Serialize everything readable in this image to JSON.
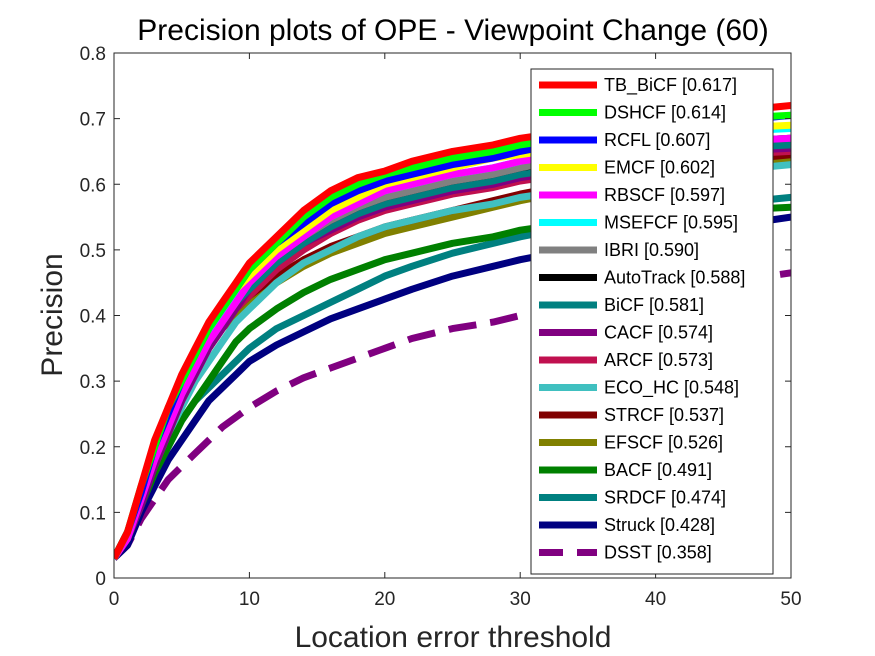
{
  "chart_data": {
    "type": "line",
    "title": "Precision plots of OPE - Viewpoint Change (60)",
    "xlabel": "Location error threshold",
    "ylabel": "Precision",
    "xlim": [
      0,
      50
    ],
    "ylim": [
      0,
      0.8
    ],
    "xticks": [
      "0",
      "10",
      "20",
      "30",
      "40",
      "50"
    ],
    "yticks": [
      "0",
      "0.1",
      "0.2",
      "0.3",
      "0.4",
      "0.5",
      "0.6",
      "0.7",
      "0.8"
    ],
    "grid": false,
    "legend_position": "top-right",
    "x": [
      0,
      1,
      2,
      3,
      4,
      5,
      6,
      7,
      8,
      9,
      10,
      12,
      14,
      16,
      18,
      20,
      22,
      25,
      28,
      30,
      35,
      40,
      45,
      50
    ],
    "series": [
      {
        "name": "TB_BiCF [0.617]",
        "color": "#ff0000",
        "dash": false,
        "values": [
          0.03,
          0.07,
          0.14,
          0.21,
          0.26,
          0.31,
          0.35,
          0.39,
          0.42,
          0.45,
          0.48,
          0.52,
          0.56,
          0.59,
          0.61,
          0.62,
          0.635,
          0.65,
          0.66,
          0.67,
          0.685,
          0.7,
          0.71,
          0.72
        ]
      },
      {
        "name": "DSHCF [0.614]",
        "color": "#00ff00",
        "dash": false,
        "values": [
          0.03,
          0.07,
          0.14,
          0.2,
          0.26,
          0.3,
          0.34,
          0.38,
          0.41,
          0.44,
          0.47,
          0.51,
          0.55,
          0.58,
          0.6,
          0.615,
          0.625,
          0.64,
          0.65,
          0.66,
          0.675,
          0.69,
          0.7,
          0.705
        ]
      },
      {
        "name": "RCFL [0.607]",
        "color": "#0000ff",
        "dash": false,
        "values": [
          0.03,
          0.07,
          0.13,
          0.2,
          0.25,
          0.3,
          0.34,
          0.38,
          0.41,
          0.44,
          0.47,
          0.51,
          0.54,
          0.57,
          0.59,
          0.605,
          0.615,
          0.63,
          0.64,
          0.65,
          0.67,
          0.68,
          0.695,
          0.705
        ]
      },
      {
        "name": "EMCF [0.602]",
        "color": "#ffff00",
        "dash": false,
        "values": [
          0.03,
          0.07,
          0.13,
          0.2,
          0.25,
          0.3,
          0.34,
          0.38,
          0.41,
          0.44,
          0.46,
          0.5,
          0.53,
          0.56,
          0.58,
          0.6,
          0.61,
          0.625,
          0.64,
          0.645,
          0.66,
          0.675,
          0.685,
          0.69
        ]
      },
      {
        "name": "RBSCF [0.597]",
        "color": "#ff00ff",
        "dash": false,
        "values": [
          0.03,
          0.06,
          0.12,
          0.18,
          0.23,
          0.28,
          0.32,
          0.36,
          0.39,
          0.42,
          0.45,
          0.49,
          0.52,
          0.55,
          0.57,
          0.59,
          0.6,
          0.615,
          0.625,
          0.635,
          0.65,
          0.66,
          0.665,
          0.67
        ]
      },
      {
        "name": "MSEFCF [0.595]",
        "color": "#00ffff",
        "dash": false,
        "values": [
          0.03,
          0.07,
          0.13,
          0.19,
          0.24,
          0.29,
          0.33,
          0.37,
          0.4,
          0.43,
          0.46,
          0.5,
          0.53,
          0.555,
          0.575,
          0.59,
          0.6,
          0.615,
          0.625,
          0.635,
          0.655,
          0.67,
          0.68,
          0.685
        ]
      },
      {
        "name": "IBRI [0.590]",
        "color": "#808080",
        "dash": false,
        "values": [
          0.03,
          0.07,
          0.13,
          0.19,
          0.24,
          0.29,
          0.33,
          0.37,
          0.4,
          0.43,
          0.46,
          0.49,
          0.52,
          0.545,
          0.565,
          0.58,
          0.59,
          0.605,
          0.615,
          0.625,
          0.645,
          0.66,
          0.665,
          0.67
        ]
      },
      {
        "name": "AutoTrack [0.588]",
        "color": "#000000",
        "dash": false,
        "values": [
          0.03,
          0.07,
          0.13,
          0.19,
          0.24,
          0.29,
          0.33,
          0.37,
          0.4,
          0.43,
          0.455,
          0.49,
          0.52,
          0.545,
          0.565,
          0.58,
          0.59,
          0.605,
          0.615,
          0.625,
          0.64,
          0.655,
          0.665,
          0.67
        ]
      },
      {
        "name": "BiCF [0.581]",
        "color": "#008080",
        "dash": false,
        "values": [
          0.03,
          0.06,
          0.12,
          0.18,
          0.23,
          0.28,
          0.32,
          0.36,
          0.39,
          0.42,
          0.44,
          0.48,
          0.51,
          0.535,
          0.555,
          0.57,
          0.58,
          0.595,
          0.605,
          0.615,
          0.63,
          0.645,
          0.655,
          0.66
        ]
      },
      {
        "name": "CACF [0.574]",
        "color": "#800080",
        "dash": false,
        "values": [
          0.03,
          0.06,
          0.11,
          0.17,
          0.22,
          0.27,
          0.31,
          0.35,
          0.38,
          0.41,
          0.44,
          0.48,
          0.51,
          0.53,
          0.55,
          0.565,
          0.575,
          0.59,
          0.6,
          0.61,
          0.625,
          0.64,
          0.65,
          0.655
        ]
      },
      {
        "name": "ARCF [0.573]",
        "color": "#c0104f",
        "dash": false,
        "values": [
          0.03,
          0.06,
          0.12,
          0.17,
          0.22,
          0.27,
          0.31,
          0.35,
          0.38,
          0.41,
          0.43,
          0.47,
          0.5,
          0.525,
          0.545,
          0.56,
          0.57,
          0.585,
          0.595,
          0.605,
          0.62,
          0.635,
          0.645,
          0.65
        ]
      },
      {
        "name": "ECO_HC [0.548]",
        "color": "#40c0c0",
        "dash": false,
        "values": [
          0.03,
          0.06,
          0.12,
          0.17,
          0.22,
          0.26,
          0.3,
          0.33,
          0.36,
          0.39,
          0.41,
          0.45,
          0.48,
          0.5,
          0.52,
          0.535,
          0.545,
          0.56,
          0.57,
          0.58,
          0.595,
          0.61,
          0.62,
          0.63
        ]
      },
      {
        "name": "STRCF [0.537]",
        "color": "#800000",
        "dash": false,
        "values": [
          0.03,
          0.06,
          0.12,
          0.18,
          0.23,
          0.28,
          0.32,
          0.36,
          0.39,
          0.41,
          0.43,
          0.46,
          0.485,
          0.505,
          0.52,
          0.535,
          0.545,
          0.56,
          0.575,
          0.585,
          0.605,
          0.62,
          0.635,
          0.645
        ]
      },
      {
        "name": "EFSCF [0.526]",
        "color": "#808000",
        "dash": false,
        "values": [
          0.03,
          0.06,
          0.12,
          0.18,
          0.23,
          0.28,
          0.32,
          0.35,
          0.38,
          0.4,
          0.42,
          0.45,
          0.475,
          0.495,
          0.51,
          0.525,
          0.535,
          0.55,
          0.565,
          0.575,
          0.595,
          0.61,
          0.625,
          0.64
        ]
      },
      {
        "name": "BACF [0.491]",
        "color": "#008000",
        "dash": false,
        "values": [
          0.03,
          0.06,
          0.11,
          0.16,
          0.2,
          0.24,
          0.27,
          0.3,
          0.33,
          0.36,
          0.38,
          0.41,
          0.435,
          0.455,
          0.47,
          0.485,
          0.495,
          0.51,
          0.52,
          0.53,
          0.545,
          0.555,
          0.56,
          0.565
        ]
      },
      {
        "name": "SRDCF [0.474]",
        "color": "#008080",
        "dash": false,
        "values": [
          0.03,
          0.06,
          0.11,
          0.16,
          0.2,
          0.24,
          0.27,
          0.29,
          0.31,
          0.33,
          0.35,
          0.38,
          0.4,
          0.42,
          0.44,
          0.46,
          0.475,
          0.495,
          0.51,
          0.52,
          0.54,
          0.555,
          0.57,
          0.58
        ]
      },
      {
        "name": "Struck [0.428]",
        "color": "#000080",
        "dash": false,
        "values": [
          0.03,
          0.05,
          0.1,
          0.14,
          0.18,
          0.21,
          0.24,
          0.27,
          0.29,
          0.31,
          0.33,
          0.355,
          0.375,
          0.395,
          0.41,
          0.425,
          0.44,
          0.46,
          0.475,
          0.485,
          0.505,
          0.52,
          0.535,
          0.55
        ]
      },
      {
        "name": "DSST [0.358]",
        "color": "#800080",
        "dash": true,
        "values": [
          0.03,
          0.05,
          0.09,
          0.12,
          0.15,
          0.17,
          0.19,
          0.21,
          0.23,
          0.245,
          0.26,
          0.285,
          0.305,
          0.32,
          0.335,
          0.35,
          0.365,
          0.38,
          0.39,
          0.4,
          0.42,
          0.435,
          0.45,
          0.465
        ]
      }
    ]
  }
}
